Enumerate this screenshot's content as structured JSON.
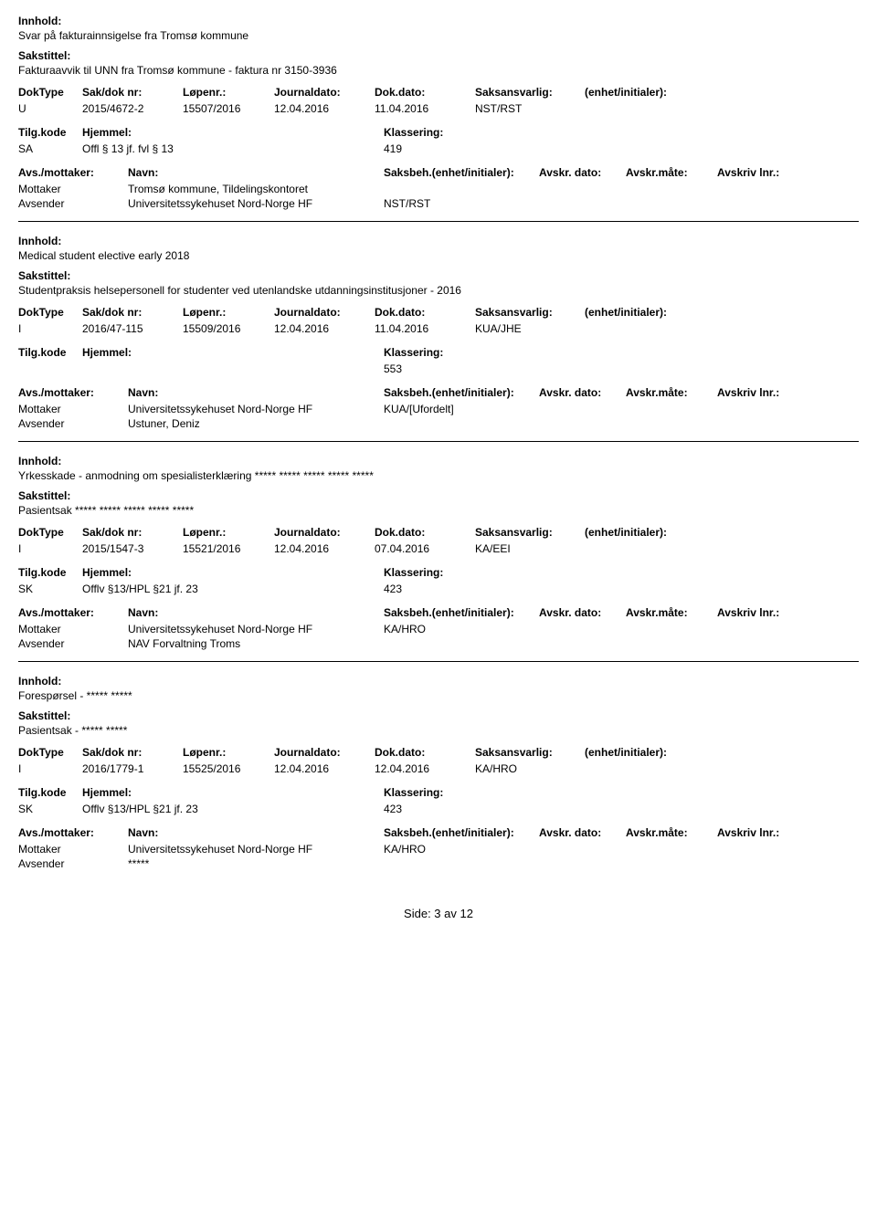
{
  "labels": {
    "innhold": "Innhold:",
    "sakstittel": "Sakstittel:",
    "doktype": "DokType",
    "sakdok": "Sak/dok nr:",
    "lopenr": "Løpenr.:",
    "journaldato": "Journaldato:",
    "dokdato": "Dok.dato:",
    "saksansvarlig": "Saksansvarlig:",
    "enhet": "(enhet/initialer):",
    "tilgkode": "Tilg.kode",
    "hjemmel": "Hjemmel:",
    "klassering": "Klassering:",
    "avsmottaker": "Avs./mottaker:",
    "navn": "Navn:",
    "saksbeh": "Saksbeh.(enhet/initialer):",
    "avskrdato": "Avskr. dato:",
    "avskrmate": "Avskr.måte:",
    "avskrivlnr": "Avskriv lnr.:",
    "mottaker": "Mottaker",
    "avsender": "Avsender"
  },
  "records": [
    {
      "innhold": "Svar på fakturainnsigelse fra Tromsø kommune",
      "sakstittel": "Fakturaavvik til UNN fra Tromsø kommune - faktura nr 3150-3936",
      "doktype": "U",
      "sakdok": "2015/4672-2",
      "lopenr": "15507/2016",
      "journaldato": "12.04.2016",
      "dokdato": "11.04.2016",
      "saksansvarlig": "NST/RST",
      "tilgkode": "SA",
      "hjemmel": "Offl § 13 jf. fvl § 13",
      "klassering": "419",
      "parties": [
        {
          "role": "Mottaker",
          "name": "Tromsø kommune, Tildelingskontoret",
          "beh": ""
        },
        {
          "role": "Avsender",
          "name": "Universitetssykehuset Nord-Norge HF",
          "beh": "NST/RST"
        }
      ]
    },
    {
      "innhold": "Medical student elective early 2018",
      "sakstittel": "Studentpraksis helsepersonell for studenter ved utenlandske utdanningsinstitusjoner - 2016",
      "doktype": "I",
      "sakdok": "2016/47-115",
      "lopenr": "15509/2016",
      "journaldato": "12.04.2016",
      "dokdato": "11.04.2016",
      "saksansvarlig": "KUA/JHE",
      "tilgkode": "",
      "hjemmel": "",
      "klassering": "553",
      "parties": [
        {
          "role": "Mottaker",
          "name": "Universitetssykehuset Nord-Norge HF",
          "beh": "KUA/[Ufordelt]"
        },
        {
          "role": "Avsender",
          "name": "Ustuner, Deniz",
          "beh": ""
        }
      ]
    },
    {
      "innhold": "Yrkesskade - anmodning om spesialisterklæring ***** ***** ***** ***** *****",
      "sakstittel": "Pasientsak ***** ***** ***** ***** *****",
      "doktype": "I",
      "sakdok": "2015/1547-3",
      "lopenr": "15521/2016",
      "journaldato": "12.04.2016",
      "dokdato": "07.04.2016",
      "saksansvarlig": "KA/EEI",
      "tilgkode": "SK",
      "hjemmel": "Offlv §13/HPL §21 jf. 23",
      "klassering": "423",
      "parties": [
        {
          "role": "Mottaker",
          "name": "Universitetssykehuset Nord-Norge HF",
          "beh": "KA/HRO"
        },
        {
          "role": "Avsender",
          "name": "NAV Forvaltning Troms",
          "beh": ""
        }
      ]
    },
    {
      "innhold": "Forespørsel - ***** *****",
      "sakstittel": "Pasientsak - ***** *****",
      "doktype": "I",
      "sakdok": "2016/1779-1",
      "lopenr": "15525/2016",
      "journaldato": "12.04.2016",
      "dokdato": "12.04.2016",
      "saksansvarlig": "KA/HRO",
      "tilgkode": "SK",
      "hjemmel": "Offlv §13/HPL §21 jf. 23",
      "klassering": "423",
      "parties": [
        {
          "role": "Mottaker",
          "name": "Universitetssykehuset Nord-Norge HF",
          "beh": "KA/HRO"
        },
        {
          "role": "Avsender",
          "name": "*****",
          "beh": ""
        }
      ]
    }
  ],
  "footer": "Side: 3 av 12"
}
